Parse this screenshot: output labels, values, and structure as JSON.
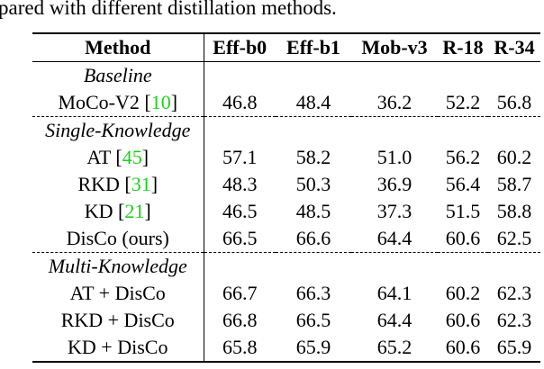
{
  "caption": "pared with different distillation methods.",
  "table": {
    "headers": [
      "Method",
      "Eff-b0",
      "Eff-b1",
      "Mob-v3",
      "R-18",
      "R-34"
    ],
    "groups": [
      {
        "label": "Baseline",
        "rows": [
          {
            "method": "MoCo-V2 [",
            "cite": "10",
            "method_end": "]",
            "values": [
              "46.8",
              "48.4",
              "36.2",
              "52.2",
              "56.8"
            ],
            "bold": [
              false,
              false,
              false,
              false,
              false
            ]
          }
        ]
      },
      {
        "label": "Single-Knowledge",
        "rows": [
          {
            "method": "AT [",
            "cite": "45",
            "method_end": "]",
            "values": [
              "57.1",
              "58.2",
              "51.0",
              "56.2",
              "60.2"
            ],
            "bold": [
              false,
              false,
              false,
              false,
              false
            ]
          },
          {
            "method": "RKD [",
            "cite": "31",
            "method_end": "]",
            "values": [
              "48.3",
              "50.3",
              "36.9",
              "56.4",
              "58.7"
            ],
            "bold": [
              false,
              false,
              false,
              false,
              false
            ]
          },
          {
            "method": "KD [",
            "cite": "21",
            "method_end": "]",
            "values": [
              "46.5",
              "48.5",
              "37.3",
              "51.5",
              "58.8"
            ],
            "bold": [
              false,
              false,
              false,
              false,
              false
            ]
          },
          {
            "method": "DisCo (ours)",
            "values": [
              "66.5",
              "66.6",
              "64.4",
              "60.6",
              "62.5"
            ],
            "bold_method": true,
            "bold": [
              true,
              true,
              true,
              true,
              true
            ]
          }
        ]
      },
      {
        "label": "Multi-Knowledge",
        "rows": [
          {
            "method": "AT + DisCo",
            "values": [
              "66.7",
              "66.3",
              "64.1",
              "60.2",
              "62.3"
            ],
            "bold": [
              false,
              false,
              false,
              false,
              false
            ]
          },
          {
            "method": "RKD + DisCo",
            "values": [
              "66.8",
              "66.5",
              "64.4",
              "60.6",
              "62.3"
            ],
            "bold": [
              true,
              true,
              false,
              true,
              false
            ]
          },
          {
            "method": "KD + DisCo",
            "values": [
              "65.8",
              "65.9",
              "65.2",
              "60.6",
              "65.9"
            ],
            "bold": [
              false,
              false,
              true,
              true,
              true
            ]
          }
        ]
      }
    ]
  }
}
